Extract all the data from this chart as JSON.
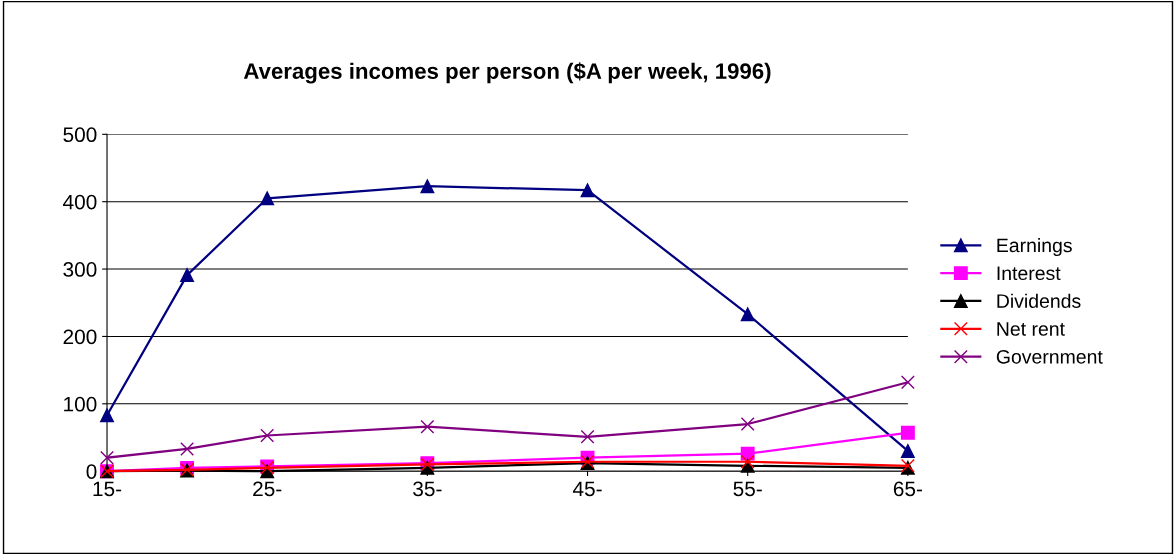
{
  "chart_data": {
    "type": "line",
    "title": "Averages incomes per person ($A per week, 1996)",
    "x": [
      15,
      20,
      25,
      35,
      45,
      55,
      65
    ],
    "xlim": [
      15,
      65
    ],
    "xticks": [
      {
        "value": 15,
        "label": "15-"
      },
      {
        "value": 25,
        "label": "25-"
      },
      {
        "value": 35,
        "label": "35-"
      },
      {
        "value": 45,
        "label": "45-"
      },
      {
        "value": 55,
        "label": "55-"
      },
      {
        "value": 65,
        "label": "65-"
      }
    ],
    "ylim": [
      0,
      500
    ],
    "yticks": [
      0,
      100,
      200,
      300,
      400,
      500
    ],
    "grid": "y",
    "legend": "right",
    "series": [
      {
        "name": "Earnings",
        "color": "#000080",
        "marker": "triangle",
        "values": [
          83,
          291,
          405,
          423,
          417,
          233,
          30
        ]
      },
      {
        "name": "Interest",
        "color": "#ff00ff",
        "marker": "square",
        "values": [
          0,
          5,
          7,
          12,
          20,
          26,
          57
        ]
      },
      {
        "name": "Dividends",
        "color": "#000000",
        "marker": "triangle",
        "values": [
          0,
          1,
          0,
          5,
          12,
          8,
          5
        ]
      },
      {
        "name": "Net rent",
        "color": "#ff0000",
        "marker": "cross",
        "values": [
          0,
          2,
          5,
          10,
          14,
          14,
          8
        ]
      },
      {
        "name": "Government",
        "color": "#800080",
        "marker": "cross",
        "values": [
          20,
          33,
          53,
          66,
          51,
          70,
          132
        ]
      }
    ]
  }
}
